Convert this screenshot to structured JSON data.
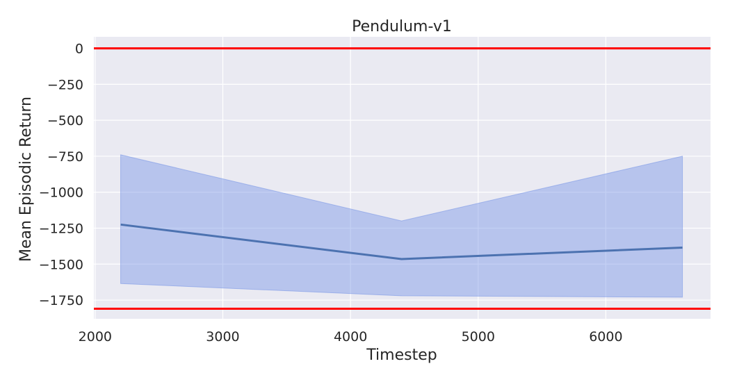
{
  "chart_data": {
    "type": "line",
    "title": "Pendulum-v1",
    "xlabel": "Timestep",
    "ylabel": "Mean Episodic Return",
    "xlim": [
      1990,
      6820
    ],
    "ylim": [
      -1880,
      80
    ],
    "xticks": [
      2000,
      3000,
      4000,
      5000,
      6000
    ],
    "yticks": [
      0,
      -250,
      -500,
      -750,
      -1000,
      -1250,
      -1500,
      -1750
    ],
    "xtick_labels": [
      "2000",
      "3000",
      "4000",
      "5000",
      "6000"
    ],
    "ytick_labels": [
      "0",
      "−250",
      "−500",
      "−750",
      "−1000",
      "−1250",
      "−1500",
      "−1750"
    ],
    "grid": true,
    "series": [
      {
        "x": [
          2200,
          4400,
          6600
        ],
        "y": [
          -1225,
          -1465,
          -1385
        ],
        "lower": [
          -1635,
          -1720,
          -1730
        ],
        "upper": [
          -740,
          -1200,
          -750
        ],
        "color": "#4c72b0",
        "band_color": "#7b97e6"
      }
    ],
    "reference_lines": [
      {
        "y": 0,
        "color": "#ff0000"
      },
      {
        "y": -1810,
        "color": "#ff0000"
      }
    ],
    "background_color": "#eaeaf2",
    "grid_color": "#ffffff"
  }
}
